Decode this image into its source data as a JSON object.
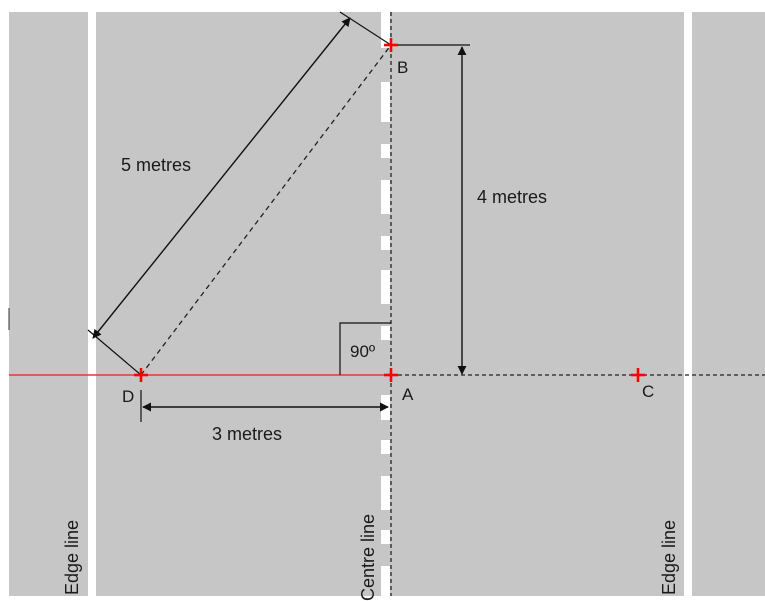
{
  "points": {
    "A": "A",
    "B": "B",
    "C": "C",
    "D": "D"
  },
  "dimensions": {
    "hypotenuse": "5 metres",
    "vertical": "4 metres",
    "horizontal": "3 metres",
    "right_angle": "90º"
  },
  "road_lines": {
    "left_edge": "Edge line",
    "centre": "Centre line",
    "right_edge": "Edge line"
  },
  "colors": {
    "road": "#c6c6c6",
    "marking": "#ffffff",
    "reference_line": "#e03c31",
    "marker": "#ff0000",
    "ink": "#111111"
  }
}
